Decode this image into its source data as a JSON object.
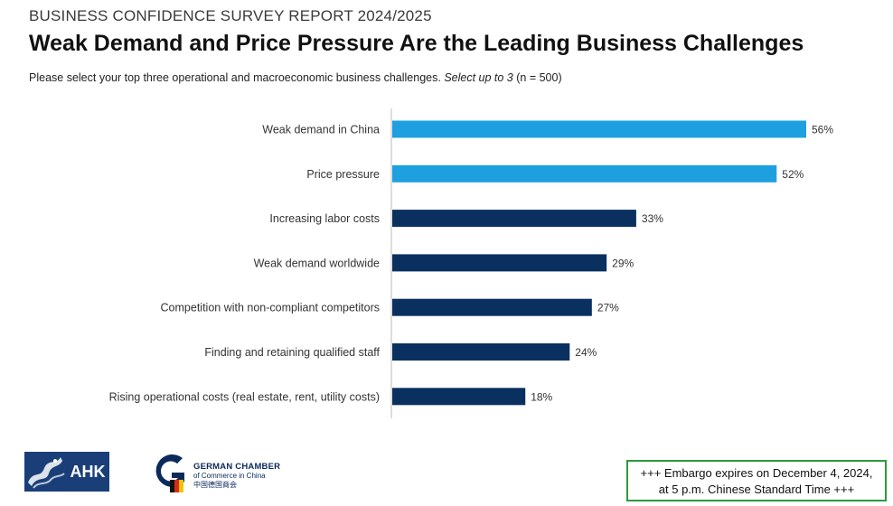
{
  "header": {
    "kicker": "BUSINESS CONFIDENCE SURVEY REPORT 2024/2025",
    "title": "Weak Demand and Price Pressure Are the Leading Business Challenges",
    "subtitle_main": "Please select your top three operational and macroeconomic business challenges.",
    "subtitle_italic": "Select up to 3",
    "subtitle_n": "(n = 500)"
  },
  "chart_data": {
    "type": "bar",
    "orientation": "horizontal",
    "categories": [
      "Weak demand in China",
      "Price pressure",
      "Increasing labor costs",
      "Weak demand worldwide",
      "Competition with non-compliant competitors",
      "Finding and retaining qualified staff",
      "Rising operational costs (real estate, rent, utility costs)"
    ],
    "values": [
      56,
      52,
      33,
      29,
      27,
      24,
      18
    ],
    "value_labels": [
      "56%",
      "52%",
      "33%",
      "29%",
      "27%",
      "24%",
      "18%"
    ],
    "highlight_count": 2,
    "colors": {
      "highlight": "#1ea0e0",
      "default": "#0a3060",
      "axis": "#bbbbbb"
    },
    "xlim": [
      0,
      56
    ]
  },
  "footer": {
    "ahk_logo_text": "AHK",
    "gcc_line1": "GERMAN CHAMBER",
    "gcc_line2": "of Commerce in China",
    "gcc_line3": "中国德国商会",
    "embargo_line1": "+++ Embargo expires on December 4, 2024,",
    "embargo_line2": "at 5 p.m. Chinese Standard Time +++",
    "embargo_border_color": "#2e9a3c"
  }
}
